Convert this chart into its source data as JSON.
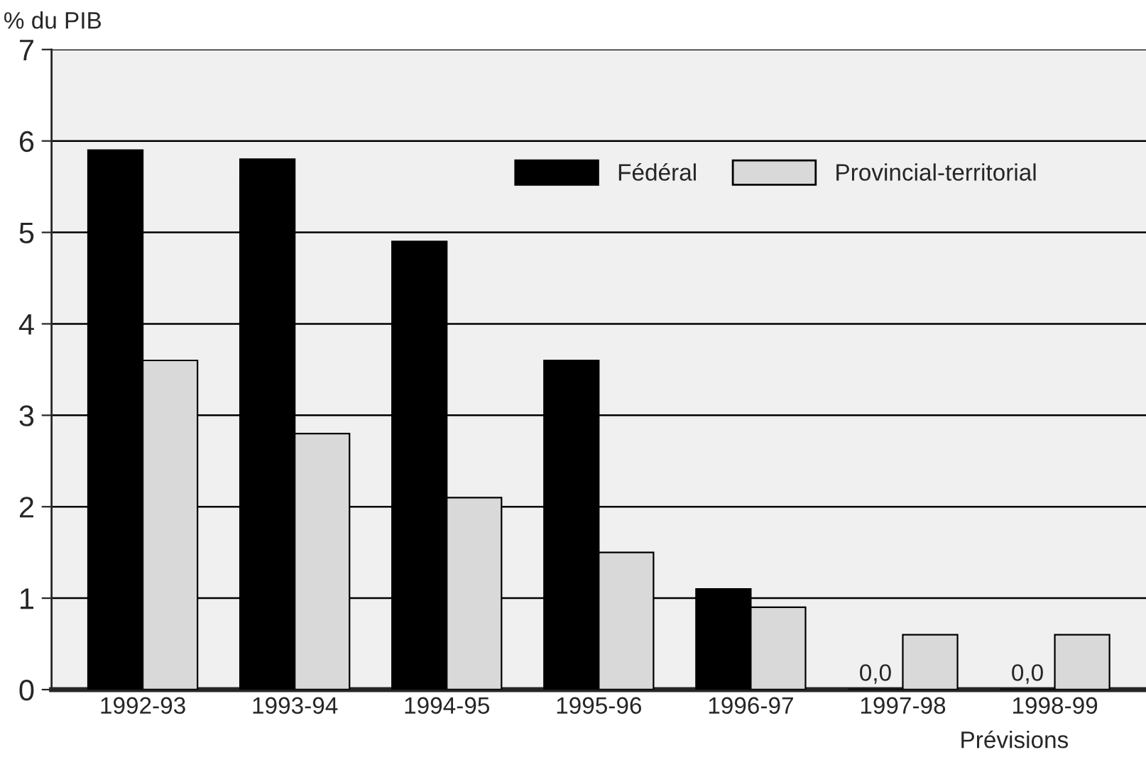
{
  "chart_data": {
    "type": "bar",
    "ylabel": "% du PIB",
    "categories": [
      "1992-93",
      "1993-94",
      "1994-95",
      "1995-96",
      "1996-97",
      "1997-98",
      "1998-99"
    ],
    "series": [
      {
        "name": "Fédéral",
        "color": "#000000",
        "values": [
          5.9,
          5.8,
          4.9,
          3.6,
          1.1,
          0.0,
          0.0
        ],
        "value_labels": [
          null,
          null,
          null,
          null,
          null,
          "0,0",
          "0,0"
        ]
      },
      {
        "name": "Provincial-territorial",
        "color": "#d9d9d9",
        "values": [
          3.6,
          2.8,
          2.1,
          1.5,
          0.9,
          0.6,
          0.6
        ]
      }
    ],
    "ylim": [
      0,
      7
    ],
    "yticks": [
      0,
      1,
      2,
      3,
      4,
      5,
      6,
      7
    ],
    "grid": "y",
    "legend": "top right",
    "annotations": [
      "Prévisions"
    ]
  }
}
